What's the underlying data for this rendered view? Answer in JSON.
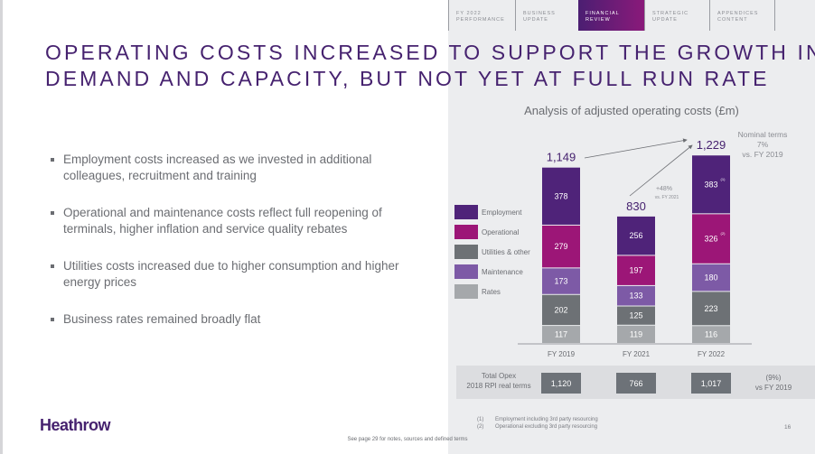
{
  "nav": {
    "items": [
      {
        "line1": "FY 2022",
        "line2": "PERFORMANCE",
        "active": false
      },
      {
        "line1": "BUSINESS",
        "line2": "UPDATE",
        "active": false
      },
      {
        "line1": "FINANCIAL",
        "line2": "REVIEW",
        "active": true
      },
      {
        "line1": "STRATEGIC",
        "line2": "UPDATE",
        "active": false
      },
      {
        "line1": "APPENDICES",
        "line2": "CONTENT",
        "active": false
      }
    ]
  },
  "title": {
    "line1": "OPERATING COSTS INCREASED TO SUPPORT THE GROWTH IN",
    "line2": "DEMAND AND CAPACITY, BUT NOT YET AT FULL RUN RATE"
  },
  "bullets": [
    "Employment costs increased as we invested in additional colleagues, recruitment and training",
    "Operational and maintenance costs reflect full reopening of terminals, higher inflation and service quality rebates",
    "Utilities costs increased due to higher consumption and higher energy prices",
    "Business rates remained broadly flat"
  ],
  "chart_data": {
    "type": "bar",
    "stacked": true,
    "title": "Analysis of adjusted operating costs (£m)",
    "xlabel": "",
    "ylabel": "",
    "categories": [
      "FY 2019",
      "FY 2021",
      "FY 2022"
    ],
    "series": [
      {
        "name": "Rates",
        "color": "#a5a8ab",
        "values": [
          117,
          119,
          116
        ]
      },
      {
        "name": "Utilities & other",
        "color": "#6d7175",
        "values": [
          202,
          125,
          223
        ]
      },
      {
        "name": "Maintenance",
        "color": "#7d5aa6",
        "values": [
          173,
          133,
          180
        ]
      },
      {
        "name": "Operational",
        "color": "#9c1677",
        "values": [
          279,
          197,
          326
        ],
        "footnote_markers": [
          "",
          "",
          "(2)"
        ]
      },
      {
        "name": "Employment",
        "color": "#4f2379",
        "values": [
          378,
          256,
          383
        ],
        "footnote_markers": [
          "",
          "",
          "(1)"
        ]
      }
    ],
    "totals": [
      "1,149",
      "830",
      "1,229"
    ],
    "legend": [
      "Employment",
      "Operational",
      "Utilities & other",
      "Maintenance",
      "Rates"
    ],
    "legend_position": "left",
    "annotations": {
      "growth_vs_2021": {
        "value": "+48%",
        "label": "vs. FY 2021"
      },
      "nominal": {
        "line1": "Nominal terms",
        "line2": "7%",
        "line3": "vs. FY 2019"
      }
    },
    "real_terms": {
      "label_line1": "Total Opex",
      "label_line2": "2018 RPI real terms",
      "values": [
        "1,120",
        "766",
        "1,017"
      ],
      "change_line1": "(9%)",
      "change_line2": "vs FY 2019"
    },
    "ylim": [
      0,
      1250
    ]
  },
  "footer": {
    "logo": "Heathrow",
    "note": "See page 29 for notes, sources and defined terms",
    "footnotes": [
      {
        "num": "(1)",
        "text": "Employment including 3rd party resourcing"
      },
      {
        "num": "(2)",
        "text": "Operational excluding 3rd party resourcing"
      }
    ],
    "page": "16"
  }
}
